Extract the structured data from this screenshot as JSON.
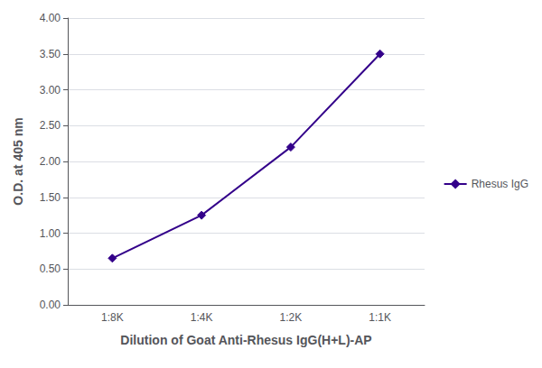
{
  "chart_data": {
    "type": "line",
    "xlabel": "Dilution of Goat Anti-Rhesus IgG(H+L)-AP",
    "ylabel": "O.D. at 405 nm",
    "categories": [
      "1:8K",
      "1:4K",
      "1:2K",
      "1:1K"
    ],
    "series": [
      {
        "name": "Rhesus IgG",
        "color": "#33008a",
        "marker": "diamond",
        "values": [
          0.65,
          1.25,
          2.2,
          3.5
        ]
      }
    ],
    "ylim": [
      0.0,
      4.0
    ],
    "yticks": [
      {
        "value": 0.0,
        "label": "0.00"
      },
      {
        "value": 0.5,
        "label": "0.50"
      },
      {
        "value": 1.0,
        "label": "1.00"
      },
      {
        "value": 1.5,
        "label": "1.50"
      },
      {
        "value": 2.0,
        "label": "2.00"
      },
      {
        "value": 2.5,
        "label": "2.50"
      },
      {
        "value": 3.0,
        "label": "3.00"
      },
      {
        "value": 3.5,
        "label": "3.50"
      },
      {
        "value": 4.0,
        "label": "4.00"
      }
    ],
    "grid": true,
    "legend": "right"
  }
}
